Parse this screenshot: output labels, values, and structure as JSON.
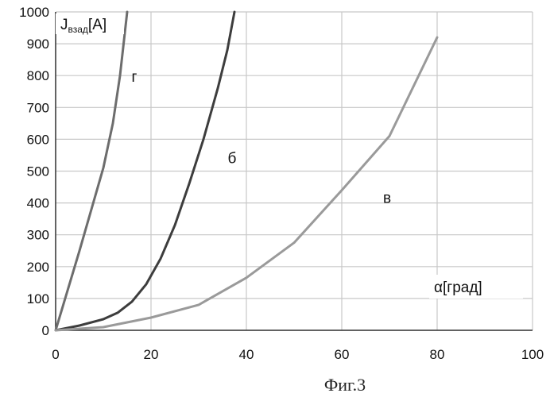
{
  "chart_data": {
    "type": "line",
    "xlabel": "α[град]",
    "ylabel": {
      "main": "J",
      "sub": "взад",
      "unit": "[A]"
    },
    "xlim": [
      0,
      100
    ],
    "ylim": [
      0,
      1000
    ],
    "xticks": [
      0,
      20,
      40,
      60,
      80,
      100
    ],
    "yticks": [
      0,
      100,
      200,
      300,
      400,
      500,
      600,
      700,
      800,
      900,
      1000
    ],
    "grid": true,
    "caption": "Фиг.3",
    "series": [
      {
        "name": "г",
        "color": "#6d6d6d",
        "x": [
          0,
          5,
          10,
          12,
          13.5,
          15
        ],
        "y": [
          0,
          250,
          510,
          650,
          800,
          1000
        ],
        "label_at": [
          16.5,
          780
        ]
      },
      {
        "name": "б",
        "color": "#3d3d3d",
        "x": [
          0,
          5,
          10,
          13,
          16,
          19,
          22,
          25,
          28,
          31,
          34,
          36,
          37.5
        ],
        "y": [
          0,
          15,
          35,
          55,
          90,
          145,
          225,
          330,
          460,
          600,
          760,
          880,
          1000
        ],
        "label_at": [
          37,
          525
        ]
      },
      {
        "name": "в",
        "color": "#9a9a9a",
        "x": [
          0,
          10,
          20,
          30,
          40,
          50,
          60,
          70,
          80
        ],
        "y": [
          0,
          10,
          40,
          80,
          165,
          275,
          440,
          610,
          920
        ],
        "label_at": [
          69.5,
          400
        ]
      }
    ]
  }
}
